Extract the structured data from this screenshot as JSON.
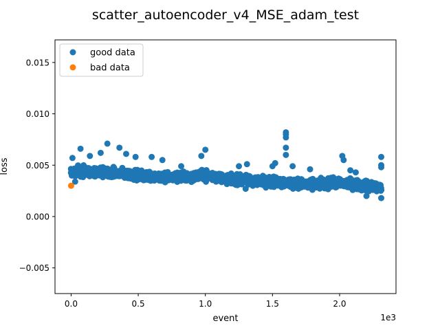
{
  "chart_data": {
    "type": "scatter",
    "title": "scatter_autoencoder_v4_MSE_adam_test",
    "xlabel": "event",
    "ylabel": "loss",
    "x_offset_text": "1e3",
    "xlim": [
      -0.12,
      2.42
    ],
    "ylim": [
      -0.0075,
      0.0172
    ],
    "x_ticks": [
      0.0,
      0.5,
      1.0,
      1.5,
      2.0
    ],
    "x_tick_labels": [
      "0.0",
      "0.5",
      "1.0",
      "1.5",
      "2.0"
    ],
    "y_ticks": [
      -0.005,
      0.0,
      0.005,
      0.01,
      0.015
    ],
    "y_tick_labels": [
      "−0.005",
      "0.000",
      "0.005",
      "0.010",
      "0.015"
    ],
    "grid": false,
    "legend_position": "top-left",
    "series": [
      {
        "name": "good data",
        "color": "#1f77b4",
        "band": {
          "x_start": 0.0,
          "x_end": 2.31,
          "center": [
            [
              0.0,
              0.0044
            ],
            [
              0.25,
              0.0043
            ],
            [
              0.5,
              0.004
            ],
            [
              0.75,
              0.0038
            ],
            [
              1.0,
              0.004
            ],
            [
              1.2,
              0.0036
            ],
            [
              1.5,
              0.0034
            ],
            [
              1.8,
              0.0031
            ],
            [
              2.0,
              0.0033
            ],
            [
              2.31,
              0.0028
            ]
          ],
          "spread": 0.0007
        },
        "outliers": [
          [
            0.01,
            0.0057
          ],
          [
            0.03,
            0.0034
          ],
          [
            0.07,
            0.0066
          ],
          [
            0.14,
            0.0059
          ],
          [
            0.22,
            0.0062
          ],
          [
            0.27,
            0.0071
          ],
          [
            0.36,
            0.0067
          ],
          [
            0.41,
            0.0061
          ],
          [
            0.48,
            0.0058
          ],
          [
            0.6,
            0.0058
          ],
          [
            0.68,
            0.0055
          ],
          [
            0.82,
            0.0049
          ],
          [
            0.97,
            0.0059
          ],
          [
            1.0,
            0.0065
          ],
          [
            1.25,
            0.0049
          ],
          [
            1.31,
            0.0051
          ],
          [
            1.3,
            0.0027
          ],
          [
            1.5,
            0.0049
          ],
          [
            1.52,
            0.0052
          ],
          [
            1.6,
            0.008
          ],
          [
            1.6,
            0.0082
          ],
          [
            1.6,
            0.0077
          ],
          [
            1.6,
            0.0067
          ],
          [
            1.6,
            0.006
          ],
          [
            1.65,
            0.0049
          ],
          [
            1.78,
            0.0046
          ],
          [
            2.02,
            0.0059
          ],
          [
            2.03,
            0.0055
          ],
          [
            2.08,
            0.0045
          ],
          [
            2.12,
            0.0043
          ],
          [
            2.31,
            0.0058
          ],
          [
            2.31,
            0.005
          ],
          [
            2.31,
            0.0048
          ],
          [
            2.31,
            0.0018
          ],
          [
            2.2,
            0.002
          ]
        ]
      },
      {
        "name": "bad data",
        "color": "#ff7f0e",
        "points": [
          [
            0.0,
            0.003
          ]
        ]
      }
    ]
  }
}
